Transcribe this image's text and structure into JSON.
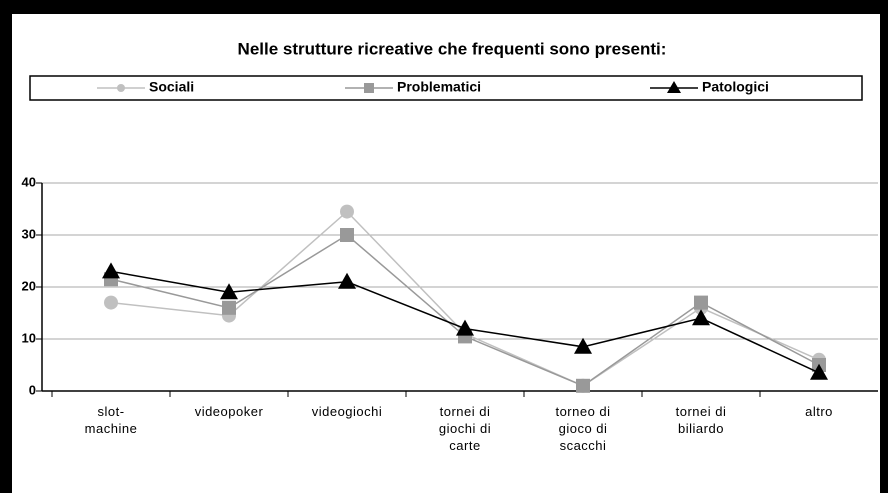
{
  "chart_data": {
    "type": "line",
    "title": "Nelle strutture ricreative che frequenti sono presenti:",
    "categories": [
      [
        "slot-",
        "machine"
      ],
      [
        "videopoker"
      ],
      [
        "videogiochi"
      ],
      [
        "tornei di",
        "giochi di",
        "carte"
      ],
      [
        "torneo di",
        "gioco di",
        "scacchi"
      ],
      [
        "tornei di",
        "biliardo"
      ],
      [
        "altro"
      ]
    ],
    "series": [
      {
        "name": "Sociali",
        "color": "#c0c0c0",
        "marker": "circle",
        "values": [
          17,
          14.5,
          34.5,
          11,
          1,
          16,
          6
        ]
      },
      {
        "name": "Problematici",
        "color": "#999999",
        "marker": "square",
        "values": [
          21.5,
          16,
          30,
          10.5,
          1,
          17,
          5
        ]
      },
      {
        "name": "Patologici",
        "color": "#000000",
        "marker": "triangle",
        "values": [
          23,
          19,
          21,
          12,
          8.5,
          14,
          3.5
        ]
      }
    ],
    "ylim": [
      0,
      40
    ],
    "yticks": [
      0,
      10,
      20,
      30,
      40
    ],
    "grid": true,
    "legend": "top"
  }
}
